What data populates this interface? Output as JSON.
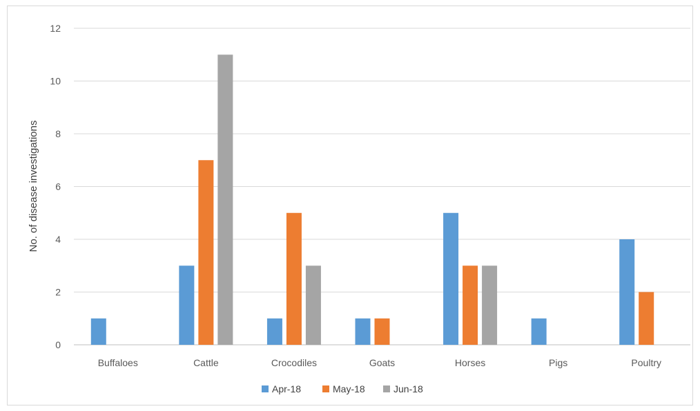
{
  "chart_data": {
    "type": "bar",
    "title": "",
    "xlabel": "",
    "ylabel": "No. of disease investigations",
    "ylim": [
      0,
      12
    ],
    "yticks": [
      "0",
      "2",
      "4",
      "6",
      "8",
      "10",
      "12"
    ],
    "grid": true,
    "legend_position": "bottom",
    "categories": [
      "Buffaloes",
      "Cattle",
      "Crocodiles",
      "Goats",
      "Horses",
      "Pigs",
      "Poultry"
    ],
    "series": [
      {
        "name": "Apr-18",
        "color": "#5b9bd5",
        "values": [
          1,
          3,
          1,
          1,
          5,
          1,
          4
        ]
      },
      {
        "name": "May-18",
        "color": "#ed7d31",
        "values": [
          0,
          7,
          5,
          1,
          3,
          0,
          2
        ]
      },
      {
        "name": "Jun-18",
        "color": "#a5a5a5",
        "values": [
          0,
          11,
          3,
          0,
          3,
          0,
          0
        ]
      }
    ]
  }
}
